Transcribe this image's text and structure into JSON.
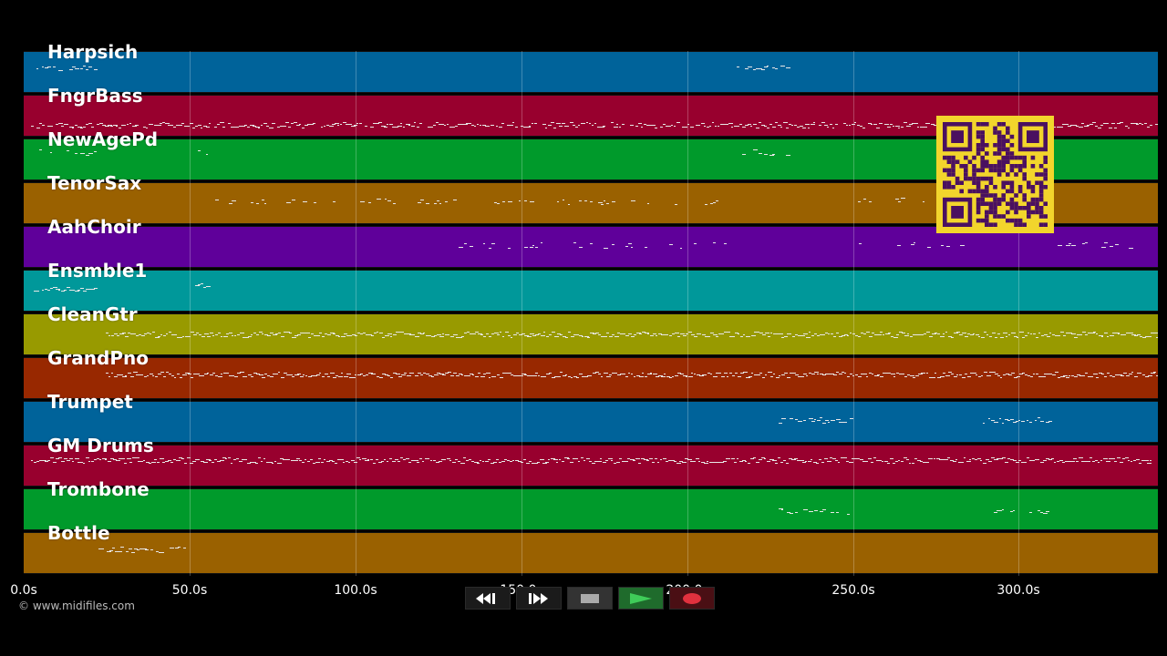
{
  "tracks": [
    {
      "name": "Harpsich",
      "color": "#00639a"
    },
    {
      "name": "FngrBass",
      "color": "#98002e"
    },
    {
      "name": "NewAgePd",
      "color": "#009a2b"
    },
    {
      "name": "TenorSax",
      "color": "#9a6100"
    },
    {
      "name": "AahChoir",
      "color": "#5f009a"
    },
    {
      "name": "Ensmble1",
      "color": "#00989a"
    },
    {
      "name": "CleanGtr",
      "color": "#989a00"
    },
    {
      "name": "GrandPno",
      "color": "#982800"
    },
    {
      "name": "Trumpet",
      "color": "#00639a"
    },
    {
      "name": "GM Drums",
      "color": "#98002e"
    },
    {
      "name": "Trombone",
      "color": "#009a2b"
    },
    {
      "name": "Bottle",
      "color": "#9a6100"
    }
  ],
  "timeline": {
    "max_seconds": 342,
    "ticks": [
      "0.0s",
      "50.0s",
      "100.0s",
      "150.0s",
      "200.0s",
      "250.0s",
      "300.0s"
    ]
  },
  "watermark": "© www.midifiles.com",
  "transport": {
    "rewind": "rewind-icon",
    "forward": "fast-forward-icon",
    "stop": "stop-icon",
    "play": "play-icon",
    "record": "record-icon"
  },
  "qr_color": "#f2d52c"
}
